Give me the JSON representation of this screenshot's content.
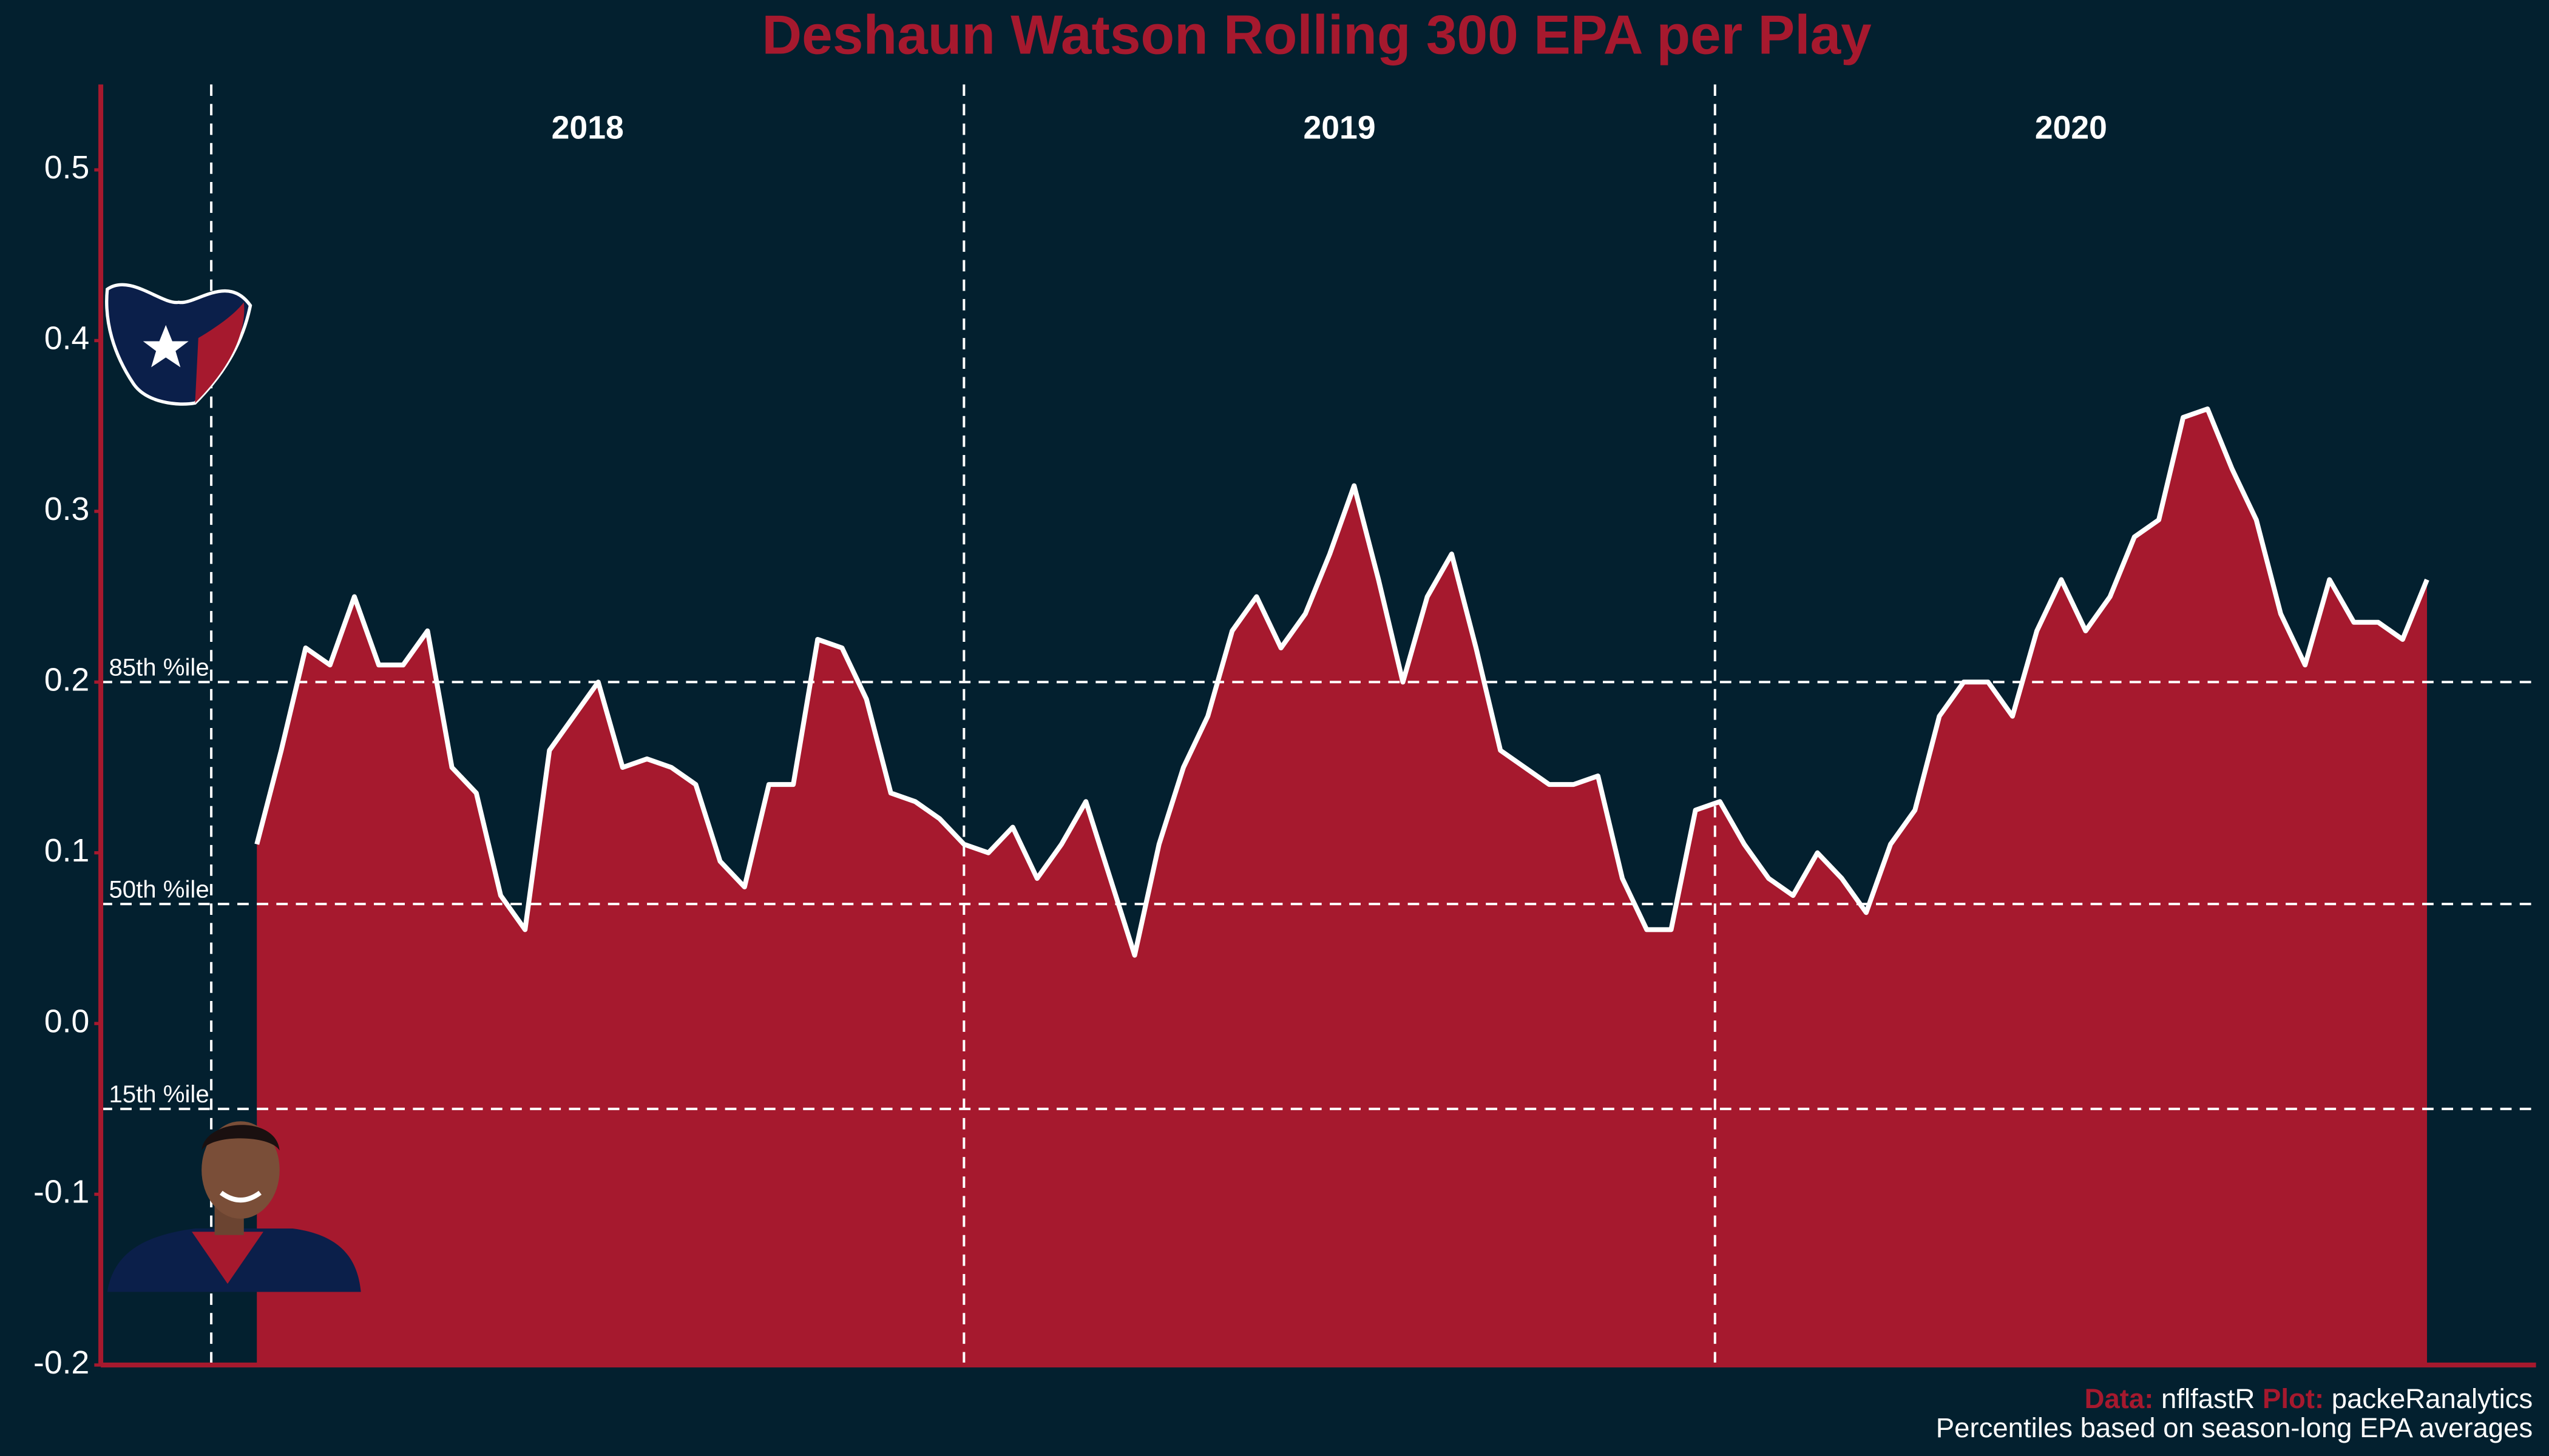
{
  "chart_data": {
    "type": "area",
    "title": "Deshaun Watson Rolling 300 EPA per Play",
    "values": [
      0.105,
      0.16,
      0.22,
      0.21,
      0.25,
      0.21,
      0.21,
      0.23,
      0.15,
      0.135,
      0.075,
      0.055,
      0.16,
      0.18,
      0.2,
      0.15,
      0.155,
      0.15,
      0.14,
      0.095,
      0.08,
      0.14,
      0.14,
      0.225,
      0.22,
      0.19,
      0.135,
      0.13,
      0.12,
      0.105,
      0.1,
      0.115,
      0.085,
      0.105,
      0.13,
      0.085,
      0.04,
      0.105,
      0.15,
      0.18,
      0.23,
      0.25,
      0.22,
      0.24,
      0.275,
      0.315,
      0.26,
      0.2,
      0.25,
      0.275,
      0.22,
      0.16,
      0.15,
      0.14,
      0.14,
      0.145,
      0.085,
      0.055,
      0.055,
      0.125,
      0.13,
      0.105,
      0.085,
      0.075,
      0.1,
      0.085,
      0.065,
      0.105,
      0.125,
      0.18,
      0.2,
      0.2,
      0.18,
      0.23,
      0.26,
      0.23,
      0.25,
      0.285,
      0.295,
      0.355,
      0.36,
      0.325,
      0.295,
      0.24,
      0.21,
      0.26,
      0.235,
      0.235,
      0.225,
      0.26
    ],
    "color": "#A6192E",
    "line_color": "#FFFFFF",
    "xlim": [
      -6.4,
      93.47
    ],
    "ylim": [
      -0.2,
      0.55
    ],
    "yticks": [
      -0.2,
      -0.1,
      {
        "value": 0,
        "label": "0.0"
      },
      0.1,
      0.2,
      0.3,
      0.4,
      0.5
    ],
    "season_breaks": [
      -1.87,
      29,
      59.8
    ],
    "seasons": [
      "2018",
      "2019",
      "2020"
    ],
    "reference_lines": [
      {
        "value": 0.2,
        "label": "85th %ile"
      },
      {
        "value": 0.07,
        "label": "50th %ile"
      },
      {
        "value": -0.05,
        "label": "15th %ile"
      }
    ],
    "caption": {
      "data_label": "Data:",
      "data_source": "nflfastR",
      "plot_label": "Plot:",
      "plot_author": "packeRanalytics",
      "note": "Percentiles based on season-long EPA averages"
    }
  }
}
